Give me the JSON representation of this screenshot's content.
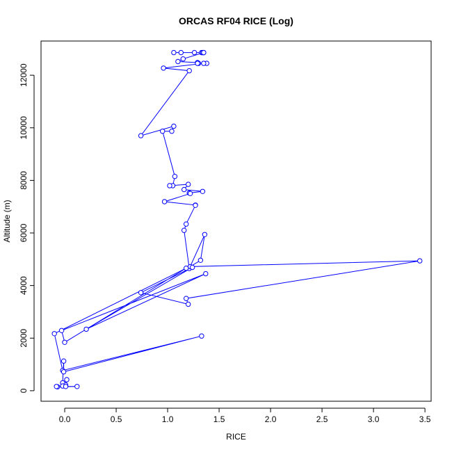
{
  "chart_data": {
    "type": "line",
    "title": "ORCAS RF04 RICE (Log)",
    "xlabel": "RICE",
    "ylabel": "Altitude (m)",
    "xlim": [
      -0.23,
      3.56
    ],
    "ylim": [
      -400,
      13300
    ],
    "xticks": [
      0.0,
      0.5,
      1.0,
      1.5,
      2.0,
      2.5,
      3.0,
      3.5
    ],
    "xtick_labels": [
      "0.0",
      "0.5",
      "1.0",
      "1.5",
      "2.0",
      "2.5",
      "3.0",
      "3.5"
    ],
    "yticks": [
      0,
      2000,
      4000,
      6000,
      8000,
      10000,
      12000
    ],
    "ytick_labels": [
      "0",
      "2000",
      "4000",
      "6000",
      "8000",
      "10000",
      "12000"
    ],
    "grid": false,
    "legend": "none",
    "series": [
      {
        "color": "#0000ff",
        "marker": "open-circle",
        "x": [
          1.06,
          1.13,
          1.26,
          1.33,
          1.34,
          1.35,
          1.35,
          1.15,
          1.1,
          1.29,
          1.3,
          1.29,
          1.38,
          1.35,
          0.96,
          1.21,
          0.74,
          1.06,
          1.04,
          0.95,
          1.07,
          1.05,
          1.02,
          1.2,
          1.16,
          1.34,
          1.21,
          1.22,
          0.97,
          1.27,
          1.27,
          1.18,
          1.16,
          1.21,
          1.36,
          1.32,
          1.22,
          3.45,
          1.18,
          1.2,
          0.74,
          1.24,
          0.21,
          1.37,
          -0.03,
          0.0,
          1.18,
          -0.1,
          -0.02,
          1.33,
          -0.01,
          -0.01,
          -0.02,
          0.02,
          0.01,
          -0.02,
          0.01,
          0.12,
          -0.07,
          -0.08
        ],
        "y": [
          12860,
          12860,
          12860,
          12860,
          12860,
          12860,
          12860,
          12620,
          12520,
          12480,
          12450,
          12450,
          12450,
          12450,
          12270,
          12170,
          9700,
          10060,
          9870,
          9870,
          8150,
          7800,
          7800,
          7850,
          7650,
          7580,
          7520,
          7500,
          7190,
          7060,
          7050,
          6340,
          6100,
          4650,
          5940,
          4960,
          4720,
          4940,
          3510,
          3290,
          3730,
          4690,
          2340,
          4450,
          2290,
          1840,
          4660,
          2170,
          770,
          2080,
          720,
          1130,
          300,
          420,
          220,
          180,
          160,
          160,
          150,
          160
        ]
      }
    ]
  }
}
